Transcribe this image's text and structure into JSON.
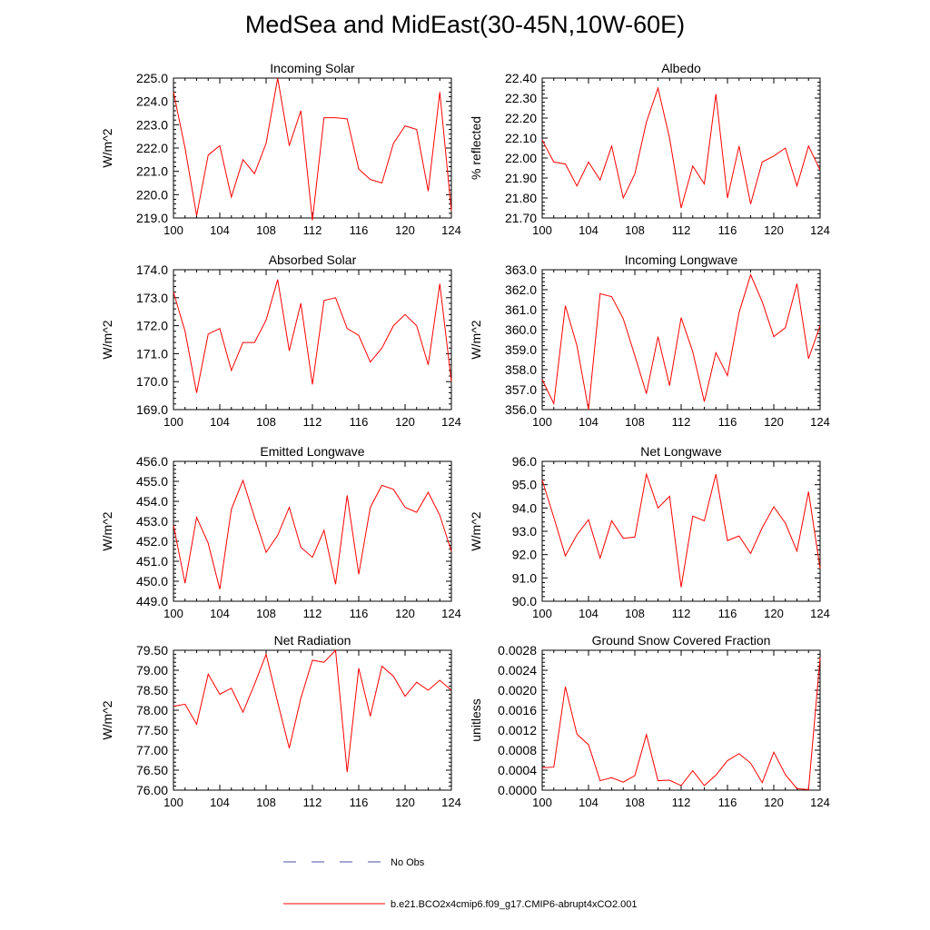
{
  "title": "MedSea and MidEast(30-45N,10W-60E)",
  "colors": {
    "series": "#ff0000",
    "no_obs": "#4f4fa8",
    "axis": "#000000"
  },
  "legend": {
    "no_obs_label": "No Obs",
    "model_label": "b.e21.BCO2x4cmip6.f09_g17.CMIP6-abrupt4xCO2.001"
  },
  "chart_data": [
    {
      "type": "line",
      "title": "Incoming Solar",
      "xlabel": "",
      "ylabel": "W/m^2",
      "xlim": [
        100,
        124
      ],
      "ylim": [
        219,
        225
      ],
      "x_ticks": [
        100,
        104,
        108,
        112,
        116,
        120,
        124
      ],
      "x_tick_labels": [
        "100",
        "104",
        "108",
        "112",
        "116",
        "120",
        "124"
      ],
      "y_ticks": [
        219,
        220,
        221,
        222,
        223,
        224,
        225
      ],
      "y_tick_labels": [
        "219.0",
        "220.0",
        "221.0",
        "222.0",
        "223.0",
        "224.0",
        "225.0"
      ],
      "x": [
        100,
        101,
        102,
        103,
        104,
        105,
        106,
        107,
        108,
        109,
        110,
        111,
        112,
        113,
        114,
        115,
        116,
        117,
        118,
        119,
        120,
        121,
        122,
        123,
        124
      ],
      "values": [
        224.4,
        222.0,
        219.1,
        221.7,
        222.1,
        219.9,
        221.5,
        220.9,
        222.2,
        225.0,
        222.1,
        223.6,
        218.9,
        223.3,
        223.3,
        223.25,
        221.1,
        220.65,
        220.5,
        222.2,
        222.95,
        222.8,
        220.15,
        224.4,
        219.3
      ]
    },
    {
      "type": "line",
      "title": "Albedo",
      "xlabel": "",
      "ylabel": "% reflected",
      "xlim": [
        100,
        124
      ],
      "ylim": [
        21.7,
        22.4
      ],
      "x_ticks": [
        100,
        104,
        108,
        112,
        116,
        120,
        124
      ],
      "x_tick_labels": [
        "100",
        "104",
        "108",
        "112",
        "116",
        "120",
        "124"
      ],
      "y_ticks": [
        21.7,
        21.8,
        21.9,
        22.0,
        22.1,
        22.2,
        22.3,
        22.4
      ],
      "y_tick_labels": [
        "21.70",
        "21.80",
        "21.90",
        "22.00",
        "22.10",
        "22.20",
        "22.30",
        "22.40"
      ],
      "x": [
        100,
        101,
        102,
        103,
        104,
        105,
        106,
        107,
        108,
        109,
        110,
        111,
        112,
        113,
        114,
        115,
        116,
        117,
        118,
        119,
        120,
        121,
        122,
        123,
        124
      ],
      "values": [
        22.09,
        21.98,
        21.97,
        21.86,
        21.98,
        21.89,
        22.06,
        21.8,
        21.92,
        22.18,
        22.35,
        22.1,
        21.75,
        21.96,
        21.87,
        22.32,
        21.8,
        22.06,
        21.77,
        21.98,
        22.01,
        22.05,
        21.86,
        22.06,
        21.94
      ]
    },
    {
      "type": "line",
      "title": "Absorbed Solar",
      "xlabel": "",
      "ylabel": "W/m^2",
      "xlim": [
        100,
        124
      ],
      "ylim": [
        169,
        174
      ],
      "x_ticks": [
        100,
        104,
        108,
        112,
        116,
        120,
        124
      ],
      "x_tick_labels": [
        "100",
        "104",
        "108",
        "112",
        "116",
        "120",
        "124"
      ],
      "y_ticks": [
        169,
        170,
        171,
        172,
        173,
        174
      ],
      "y_tick_labels": [
        "169.0",
        "170.0",
        "171.0",
        "172.0",
        "173.0",
        "174.0"
      ],
      "x": [
        100,
        101,
        102,
        103,
        104,
        105,
        106,
        107,
        108,
        109,
        110,
        111,
        112,
        113,
        114,
        115,
        116,
        117,
        118,
        119,
        120,
        121,
        122,
        123,
        124
      ],
      "values": [
        173.2,
        171.8,
        169.6,
        171.7,
        171.9,
        170.4,
        171.4,
        171.4,
        172.2,
        173.65,
        171.1,
        172.8,
        169.9,
        172.9,
        173.0,
        171.9,
        171.65,
        170.7,
        171.2,
        172.0,
        172.4,
        172.0,
        170.6,
        173.5,
        170.0
      ]
    },
    {
      "type": "line",
      "title": "Incoming Longwave",
      "xlabel": "",
      "ylabel": "W/m^2",
      "xlim": [
        100,
        124
      ],
      "ylim": [
        356,
        363
      ],
      "x_ticks": [
        100,
        104,
        108,
        112,
        116,
        120,
        124
      ],
      "x_tick_labels": [
        "100",
        "104",
        "108",
        "112",
        "116",
        "120",
        "124"
      ],
      "y_ticks": [
        356,
        357,
        358,
        359,
        360,
        361,
        362,
        363
      ],
      "y_tick_labels": [
        "356.0",
        "357.0",
        "358.0",
        "359.0",
        "360.0",
        "361.0",
        "362.0",
        "363.0"
      ],
      "x": [
        100,
        101,
        102,
        103,
        104,
        105,
        106,
        107,
        108,
        109,
        110,
        111,
        112,
        113,
        114,
        115,
        116,
        117,
        118,
        119,
        120,
        121,
        122,
        123,
        124
      ],
      "values": [
        357.5,
        356.3,
        361.2,
        359.2,
        356.0,
        361.8,
        361.65,
        360.55,
        358.7,
        356.8,
        359.65,
        357.2,
        360.6,
        358.9,
        356.4,
        358.85,
        357.7,
        360.85,
        362.75,
        361.4,
        359.65,
        360.1,
        362.3,
        358.55,
        360.2
      ]
    },
    {
      "type": "line",
      "title": "Emitted Longwave",
      "xlabel": "",
      "ylabel": "W/m^2",
      "xlim": [
        100,
        124
      ],
      "ylim": [
        449,
        456
      ],
      "x_ticks": [
        100,
        104,
        108,
        112,
        116,
        120,
        124
      ],
      "x_tick_labels": [
        "100",
        "104",
        "108",
        "112",
        "116",
        "120",
        "124"
      ],
      "y_ticks": [
        449,
        450,
        451,
        452,
        453,
        454,
        455,
        456
      ],
      "y_tick_labels": [
        "449.0",
        "450.0",
        "451.0",
        "452.0",
        "453.0",
        "454.0",
        "455.0",
        "456.0"
      ],
      "x": [
        100,
        101,
        102,
        103,
        104,
        105,
        106,
        107,
        108,
        109,
        110,
        111,
        112,
        113,
        114,
        115,
        116,
        117,
        118,
        119,
        120,
        121,
        122,
        123,
        124
      ],
      "values": [
        452.8,
        449.9,
        453.2,
        451.9,
        449.6,
        453.6,
        455.05,
        453.2,
        451.45,
        452.3,
        453.7,
        451.7,
        451.2,
        452.55,
        449.85,
        454.3,
        450.35,
        453.7,
        454.8,
        454.6,
        453.7,
        453.45,
        454.45,
        453.3,
        451.5
      ]
    },
    {
      "type": "line",
      "title": "Net Longwave",
      "xlabel": "",
      "ylabel": "W/m^2",
      "xlim": [
        100,
        124
      ],
      "ylim": [
        90,
        96
      ],
      "x_ticks": [
        100,
        104,
        108,
        112,
        116,
        120,
        124
      ],
      "x_tick_labels": [
        "100",
        "104",
        "108",
        "112",
        "116",
        "120",
        "124"
      ],
      "y_ticks": [
        90,
        91,
        92,
        93,
        94,
        95,
        96
      ],
      "y_tick_labels": [
        "90.0",
        "91.0",
        "92.0",
        "93.0",
        "94.0",
        "95.0",
        "96.0"
      ],
      "x": [
        100,
        101,
        102,
        103,
        104,
        105,
        106,
        107,
        108,
        109,
        110,
        111,
        112,
        113,
        114,
        115,
        116,
        117,
        118,
        119,
        120,
        121,
        122,
        123,
        124
      ],
      "values": [
        95.2,
        93.6,
        91.95,
        92.85,
        93.5,
        91.85,
        93.45,
        92.7,
        92.75,
        95.45,
        94.0,
        94.5,
        90.6,
        93.65,
        93.45,
        95.45,
        92.6,
        92.8,
        92.05,
        93.15,
        94.05,
        93.35,
        92.15,
        94.7,
        91.4
      ]
    },
    {
      "type": "line",
      "title": "Net Radiation",
      "xlabel": "",
      "ylabel": "W/m^2",
      "xlim": [
        100,
        124
      ],
      "ylim": [
        76,
        79.5
      ],
      "x_ticks": [
        100,
        104,
        108,
        112,
        116,
        120,
        124
      ],
      "x_tick_labels": [
        "100",
        "104",
        "108",
        "112",
        "116",
        "120",
        "124"
      ],
      "y_ticks": [
        76,
        76.5,
        77,
        77.5,
        78,
        78.5,
        79,
        79.5
      ],
      "y_tick_labels": [
        "76.00",
        "76.50",
        "77.00",
        "77.50",
        "78.00",
        "78.50",
        "79.00",
        "79.50"
      ],
      "x": [
        100,
        101,
        102,
        103,
        104,
        105,
        106,
        107,
        108,
        109,
        110,
        111,
        112,
        113,
        114,
        115,
        116,
        117,
        118,
        119,
        120,
        121,
        122,
        123,
        124
      ],
      "values": [
        78.1,
        78.15,
        77.65,
        78.9,
        78.4,
        78.55,
        77.95,
        78.65,
        79.4,
        78.2,
        77.05,
        78.3,
        79.25,
        79.2,
        79.5,
        76.45,
        79.05,
        77.85,
        79.1,
        78.85,
        78.35,
        78.7,
        78.5,
        78.75,
        78.5
      ]
    },
    {
      "type": "line",
      "title": "Ground Snow Covered Fraction",
      "xlabel": "",
      "ylabel": "unitless",
      "xlim": [
        100,
        124
      ],
      "ylim": [
        0,
        0.0028
      ],
      "x_ticks": [
        100,
        104,
        108,
        112,
        116,
        120,
        124
      ],
      "x_tick_labels": [
        "100",
        "104",
        "108",
        "112",
        "116",
        "120",
        "124"
      ],
      "y_ticks": [
        0,
        0.0004,
        0.0008,
        0.0012,
        0.0016,
        0.002,
        0.0024,
        0.0028
      ],
      "y_tick_labels": [
        "0.0000",
        "0.0004",
        "0.0008",
        "0.0012",
        "0.0016",
        "0.0020",
        "0.0024",
        "0.0028"
      ],
      "x": [
        100,
        101,
        102,
        103,
        104,
        105,
        106,
        107,
        108,
        109,
        110,
        111,
        112,
        113,
        114,
        115,
        116,
        117,
        118,
        119,
        120,
        121,
        122,
        123,
        124
      ],
      "values": [
        0.00045,
        0.00046,
        0.00207,
        0.00112,
        0.00091,
        0.00019,
        0.00025,
        0.00016,
        0.00029,
        0.00111,
        0.00019,
        0.0002,
        9e-05,
        0.00039,
        9e-05,
        0.0003,
        0.00059,
        0.00073,
        0.00054,
        0.00015,
        0.00076,
        0.00031,
        3e-05,
        1e-05,
        0.00265
      ]
    }
  ]
}
